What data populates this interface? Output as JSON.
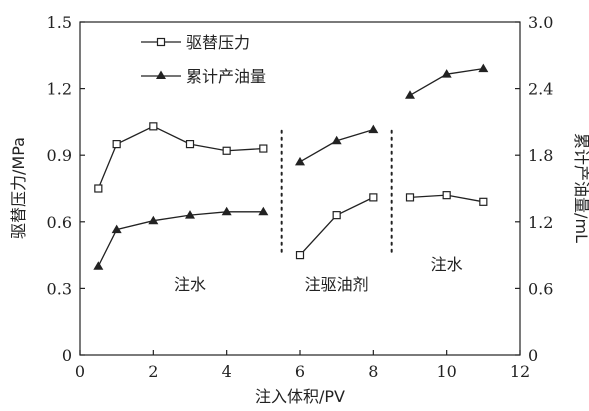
{
  "chart_data": {
    "type": "line",
    "xlabel": "注入体积/PV",
    "ylabel_left": "驱替压力/MPa",
    "ylabel_right": "累计产油量/mL",
    "xlim": [
      0,
      12
    ],
    "ylim_left": [
      0,
      1.5
    ],
    "ylim_right": [
      0,
      3.0
    ],
    "x_ticks": [
      "0",
      "2",
      "4",
      "6",
      "8",
      "10",
      "12"
    ],
    "y_left_ticks": [
      "0",
      "0.3",
      "0.6",
      "0.9",
      "1.2",
      "1.5"
    ],
    "y_right_ticks": [
      "0",
      "0.6",
      "1.2",
      "1.8",
      "2.4",
      "3.0"
    ],
    "legend_position": "top-left",
    "series": [
      {
        "name": "驱替压力",
        "axis": "left",
        "marker": "open-square",
        "segments": [
          [
            [
              0.5,
              0.75
            ],
            [
              1,
              0.95
            ],
            [
              2,
              1.03
            ],
            [
              3,
              0.95
            ],
            [
              4,
              0.92
            ],
            [
              5,
              0.93
            ]
          ],
          [
            [
              6,
              0.45
            ],
            [
              7,
              0.63
            ],
            [
              8,
              0.71
            ]
          ],
          [
            [
              9,
              0.71
            ],
            [
              10,
              0.72
            ],
            [
              11,
              0.69
            ]
          ]
        ]
      },
      {
        "name": "累计产油量",
        "axis": "right",
        "marker": "filled-triangle",
        "segments": [
          [
            [
              0.5,
              0.8
            ],
            [
              1,
              1.13
            ],
            [
              2,
              1.21
            ],
            [
              3,
              1.26
            ],
            [
              4,
              1.29
            ],
            [
              5,
              1.29
            ]
          ],
          [
            [
              6,
              1.74
            ],
            [
              7,
              1.93
            ],
            [
              8,
              2.03
            ]
          ],
          [
            [
              9,
              2.34
            ],
            [
              10,
              2.53
            ],
            [
              11,
              2.58
            ]
          ]
        ]
      }
    ],
    "phase_dividers": [
      5.5,
      8.5
    ],
    "phase_labels": [
      {
        "text": "注水",
        "x": 3.0
      },
      {
        "text": "注驱油剂",
        "x": 7.0
      },
      {
        "text": "注水",
        "x": 10.0
      }
    ]
  }
}
